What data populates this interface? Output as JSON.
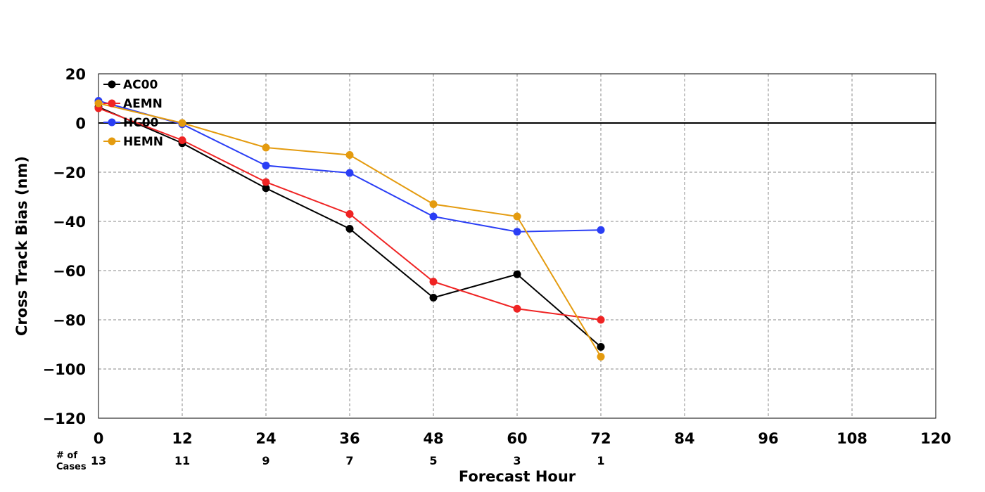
{
  "chart_data": {
    "type": "line",
    "title": "",
    "xlabel": "Forecast Hour",
    "ylabel": "Cross Track Bias (nm)",
    "xlim": [
      0,
      120
    ],
    "ylim": [
      -120,
      20
    ],
    "x_ticks": [
      0,
      12,
      24,
      36,
      48,
      60,
      72,
      84,
      96,
      108,
      120
    ],
    "y_ticks": [
      20,
      0,
      -20,
      -40,
      -60,
      -80,
      -100,
      -120
    ],
    "y_tick_labels": [
      "20",
      "0",
      "−20",
      "−40",
      "−60",
      "−80",
      "−100",
      "−120"
    ],
    "grid": true,
    "zero_line": true,
    "legend_position": "top-left",
    "x": [
      0,
      12,
      24,
      36,
      48,
      60,
      72
    ],
    "series": [
      {
        "name": "AC00",
        "color": "#000000",
        "values": [
          6.5,
          -8.2,
          -26.5,
          -43,
          -71,
          -61.5,
          -91
        ]
      },
      {
        "name": "AEMN",
        "color": "#ef2323",
        "values": [
          6,
          -7,
          -24,
          -37,
          -64.5,
          -75.5,
          -80
        ]
      },
      {
        "name": "HC00",
        "color": "#2a3ef5",
        "values": [
          9,
          -0.5,
          -17.3,
          -20.3,
          -38,
          -44.2,
          -43.5
        ]
      },
      {
        "name": "HEMN",
        "color": "#e49b0f",
        "values": [
          8,
          0,
          -10,
          -13,
          -33,
          -38,
          -95
        ]
      }
    ],
    "cases_label_line1": "# of",
    "cases_label_line2": "Cases",
    "cases": [
      {
        "hour": 0,
        "count": "13"
      },
      {
        "hour": 12,
        "count": "11"
      },
      {
        "hour": 24,
        "count": "9"
      },
      {
        "hour": 36,
        "count": "7"
      },
      {
        "hour": 48,
        "count": "5"
      },
      {
        "hour": 60,
        "count": "3"
      },
      {
        "hour": 72,
        "count": "1"
      }
    ]
  }
}
